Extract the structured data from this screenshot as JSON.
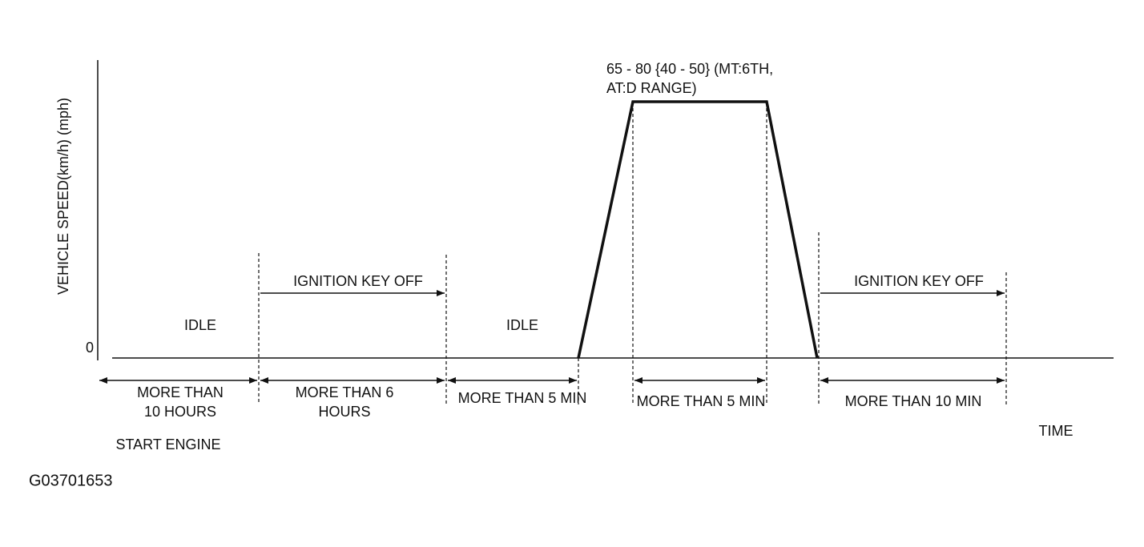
{
  "axis": {
    "y_label": "VEHICLE SPEED(km/h) (mph)",
    "zero": "0",
    "x_label": "TIME"
  },
  "speed_note": [
    "65 - 80 {40 - 50} (MT:6TH,",
    "AT:D RANGE)"
  ],
  "phases": [
    {
      "label": "IDLE"
    },
    {
      "label": "IGNITION KEY OFF"
    },
    {
      "label": "IDLE"
    },
    {
      "label": "IGNITION KEY OFF"
    }
  ],
  "durations": [
    [
      "MORE THAN",
      "10 HOURS"
    ],
    [
      "MORE THAN 6",
      "HOURS"
    ],
    [
      "MORE THAN 5 MIN"
    ],
    [
      "MORE THAN 5 MIN"
    ],
    [
      "MORE THAN 10 MIN"
    ]
  ],
  "start_label": "START ENGINE",
  "figure_id": "G03701653"
}
